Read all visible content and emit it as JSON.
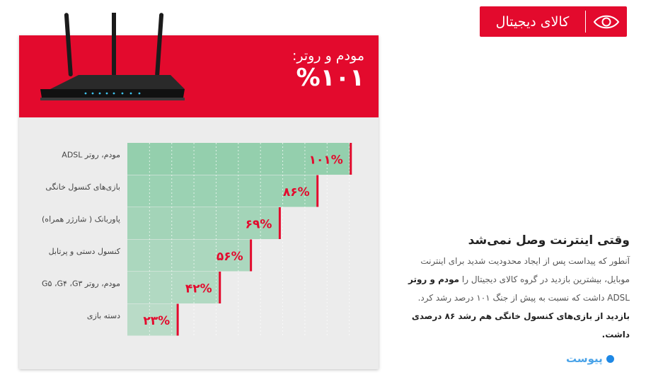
{
  "badge": {
    "label": "کالای دیجیتال",
    "icon": "eye-icon"
  },
  "header": {
    "title": "مودم و روتر:",
    "value": "%۱۰۱"
  },
  "chart_data": {
    "type": "bar",
    "orientation": "horizontal",
    "title": "",
    "xlabel": "",
    "ylabel": "",
    "categories": [
      "مودم، روتر ADSL",
      "بازی‌های کنسول خانگی",
      "پاوربانک ( شارژر همراه)",
      "کنسول دستی و پرتابل",
      "مودم، روتر G۵ ،G۴ ،G۳",
      "دسته بازی"
    ],
    "values": [
      101,
      86,
      69,
      56,
      42,
      23
    ],
    "value_labels": [
      "۱۰۱%",
      "۸۶%",
      "۶۹%",
      "۵۶%",
      "۴۲%",
      "۲۳%"
    ],
    "xlim": [
      0,
      110
    ],
    "grid": true,
    "legend": "none",
    "colors": {
      "bar": "#8fceaa",
      "bar_light": "#d8eee1",
      "marker": "#e30a2d",
      "label": "#e30a2d"
    }
  },
  "article": {
    "title": "وقتی اینترنت وصل نمی‌شد",
    "body_1": "آنطور که پیداست پس از ایجاد محدودیت شدید برای اینترنت موبایل، بیشترین بازدید در گروه کالای دیجیتال را",
    "body_strong": "مودم و روتر",
    "body_2": " ADSL داشت که نسبت به پیش از جنگ ۱۰۱ درصد رشد کرد.",
    "note": "بازدید از بازی‌های کنسول خانگی هم رشد ۸۶ درصدی داشت."
  },
  "source": {
    "label": "پیوست"
  },
  "colors": {
    "brand": "#e30a2d",
    "card_bg": "#ececec",
    "source": "#4aa3e8"
  }
}
